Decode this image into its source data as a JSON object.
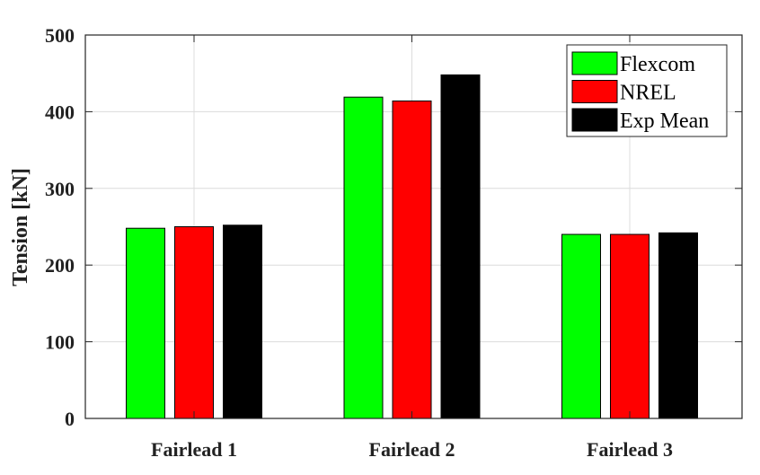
{
  "chart_data": {
    "type": "bar",
    "categories": [
      "Fairlead 1",
      "Fairlead 2",
      "Fairlead 3"
    ],
    "series": [
      {
        "name": "Flexcom",
        "color": "#00ff00",
        "values": [
          248,
          419,
          240
        ]
      },
      {
        "name": "NREL",
        "color": "#ff0000",
        "values": [
          250,
          414,
          240
        ]
      },
      {
        "name": "Exp Mean",
        "color": "#000000",
        "values": [
          252,
          448,
          242
        ]
      }
    ],
    "title": "",
    "xlabel": "",
    "ylabel": "Tension [kN]",
    "ylim": [
      0,
      500
    ],
    "yticks": [
      0,
      100,
      200,
      300,
      400,
      500
    ],
    "grid": true,
    "legend_position": "top-right"
  }
}
